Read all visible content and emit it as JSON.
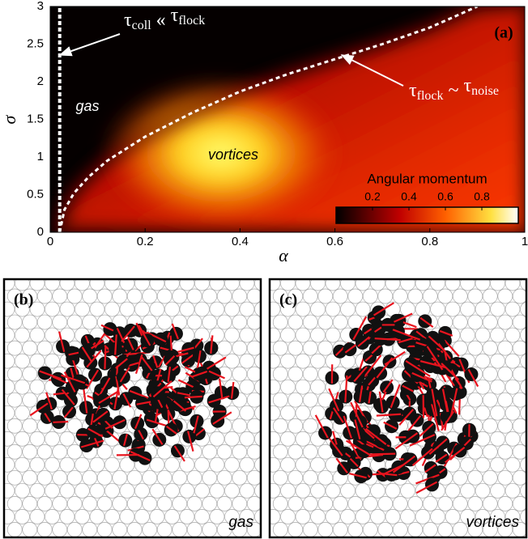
{
  "chart_data": {
    "type": "heatmap",
    "label": "(a)",
    "xlabel": "α",
    "ylabel": "σ",
    "xlim": [
      0,
      1
    ],
    "ylim": [
      0,
      3
    ],
    "xticks": [
      0,
      0.2,
      0.4,
      0.6,
      0.8,
      1
    ],
    "yticks": [
      0,
      0.5,
      1,
      1.5,
      2,
      2.5,
      3
    ],
    "regions": [
      "gas",
      "vortices"
    ],
    "annotations": [
      {
        "parts": [
          "τ",
          "coll",
          " « ",
          "τ",
          "flock"
        ]
      },
      {
        "parts": [
          "τ",
          "flock",
          " ~ ",
          "τ",
          "noise"
        ]
      }
    ],
    "boundaries": [
      {
        "x": [
          0.02,
          0.02
        ],
        "y": [
          0,
          3
        ]
      },
      {
        "x": [
          0.02,
          0.03,
          0.05,
          0.08,
          0.12,
          0.2,
          0.3,
          0.4,
          0.5,
          0.6,
          0.7,
          0.8,
          0.9
        ],
        "y": [
          0,
          0.3,
          0.52,
          0.73,
          0.95,
          1.27,
          1.59,
          1.87,
          2.1,
          2.3,
          2.5,
          2.72,
          3
        ]
      }
    ],
    "colorbar": {
      "title": "Angular momentum",
      "lim": [
        0,
        1
      ],
      "ticks": [
        0.2,
        0.4,
        0.6,
        0.8
      ]
    }
  },
  "snapshots": [
    {
      "label": "(b)",
      "caption": "gas"
    },
    {
      "label": "(c)",
      "caption": "vortices"
    }
  ]
}
